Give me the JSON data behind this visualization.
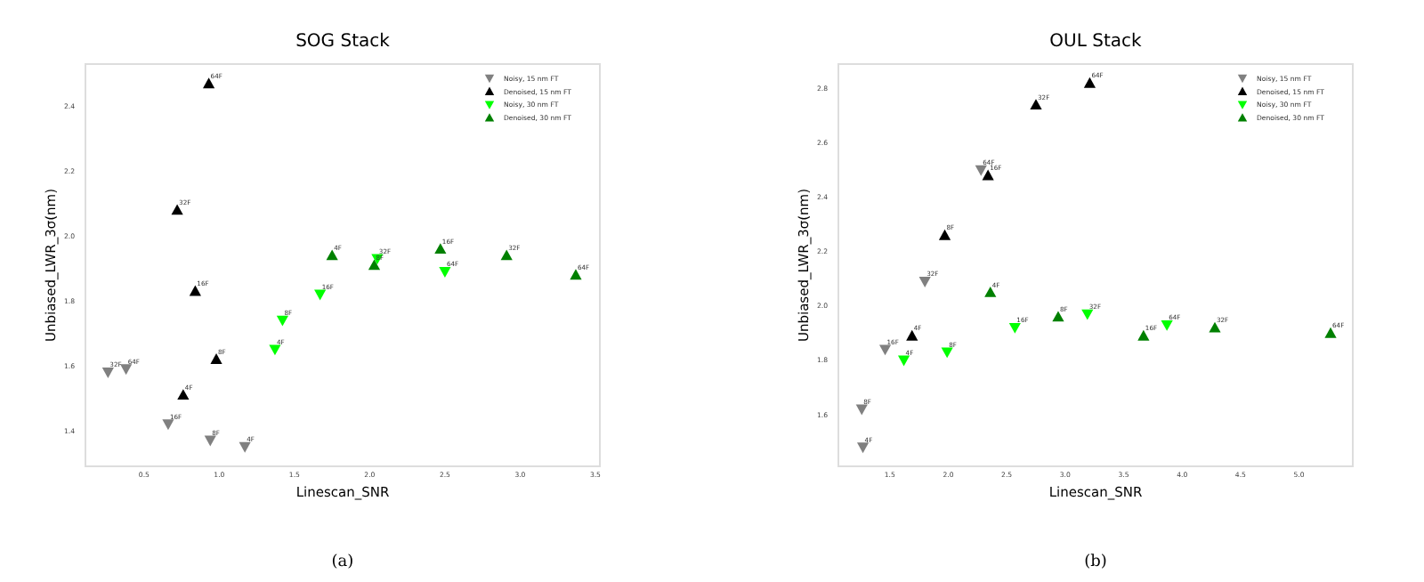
{
  "chart_data": [
    {
      "type": "scatter",
      "title": "SOG Stack",
      "xlabel": "Linescan_SNR",
      "ylabel": "Unbiased_LWR_3σ(nm)",
      "xlim": [
        0.11,
        3.53
      ],
      "ylim": [
        1.29,
        2.53
      ],
      "xticks": [
        0.5,
        {
          "value": 1,
          "label": "1.0"
        },
        1.5,
        {
          "value": 2,
          "label": "2.0"
        },
        2.5,
        {
          "value": 3,
          "label": "3.0"
        },
        3.5
      ],
      "yticks": [
        1.4,
        1.6,
        1.8,
        {
          "value": 2,
          "label": "2.0"
        },
        2.2,
        2.4
      ],
      "grid": false,
      "legend": "top right",
      "series": [
        {
          "name": "Noisy, 15 nm FT",
          "color": "#808080",
          "marker": "triangle_down",
          "x": [
            0.26,
            0.38,
            0.66,
            0.94,
            1.17
          ],
          "values": [
            1.58,
            1.59,
            1.42,
            1.37,
            1.35
          ]
        },
        {
          "name": "Denoised, 15 nm FT",
          "color": "#000000",
          "marker": "triangle",
          "x": [
            0.93,
            0.72,
            0.84,
            0.98,
            0.76
          ],
          "values": [
            2.47,
            2.08,
            1.83,
            1.62,
            1.51
          ]
        },
        {
          "name": "Noisy, 30 nm FT",
          "color": "#00ff00",
          "marker": "triangle_down",
          "x": [
            1.37,
            1.42,
            1.67,
            2.05,
            2.5
          ],
          "values": [
            1.65,
            1.74,
            1.82,
            1.93,
            1.89
          ]
        },
        {
          "name": "Denoised, 30 nm FT",
          "color": "#008000",
          "marker": "triangle",
          "x": [
            1.75,
            2.03,
            2.47,
            2.91,
            3.37
          ],
          "values": [
            1.94,
            1.91,
            1.96,
            1.94,
            1.88
          ]
        }
      ],
      "annotations": [
        {
          "text": "32F",
          "x": 0.26,
          "y": 1.58
        },
        {
          "text": "64F",
          "x": 0.38,
          "y": 1.59
        },
        {
          "text": "16F",
          "x": 0.66,
          "y": 1.42
        },
        {
          "text": "8F",
          "x": 0.94,
          "y": 1.37
        },
        {
          "text": "4F",
          "x": 1.17,
          "y": 1.35
        },
        {
          "text": "64F",
          "x": 0.93,
          "y": 2.47
        },
        {
          "text": "32F",
          "x": 0.72,
          "y": 2.08
        },
        {
          "text": "16F",
          "x": 0.84,
          "y": 1.83
        },
        {
          "text": "8F",
          "x": 0.98,
          "y": 1.62
        },
        {
          "text": "4F",
          "x": 0.76,
          "y": 1.51
        },
        {
          "text": "4F",
          "x": 1.37,
          "y": 1.65
        },
        {
          "text": "8F",
          "x": 1.42,
          "y": 1.74
        },
        {
          "text": "16F",
          "x": 1.67,
          "y": 1.82
        },
        {
          "text": "32F",
          "x": 2.05,
          "y": 1.93
        },
        {
          "text": "64F",
          "x": 2.5,
          "y": 1.89
        },
        {
          "text": "4F",
          "x": 1.75,
          "y": 1.94
        },
        {
          "text": "8F",
          "x": 2.03,
          "y": 1.91
        },
        {
          "text": "16F",
          "x": 2.47,
          "y": 1.96
        },
        {
          "text": "32F",
          "x": 2.91,
          "y": 1.94
        },
        {
          "text": "64F",
          "x": 3.37,
          "y": 1.88
        },
        "(a)"
      ]
    },
    {
      "type": "scatter",
      "title": "OUL Stack",
      "xlabel": "Linescan_SNR",
      "ylabel": "Unbiased_LWR_3σ(nm)",
      "xlim": [
        1.06,
        5.46
      ],
      "ylim": [
        1.41,
        2.89
      ],
      "xticks": [
        1.5,
        {
          "value": 2,
          "label": "2.0"
        },
        2.5,
        {
          "value": 3,
          "label": "3.0"
        },
        3.5,
        {
          "value": 4,
          "label": "4.0"
        },
        4.5,
        {
          "value": 5,
          "label": "5.0"
        }
      ],
      "yticks": [
        1.6,
        1.8,
        {
          "value": 2,
          "label": "2.0"
        },
        2.2,
        2.4,
        2.6,
        2.8
      ],
      "grid": false,
      "legend": "top right",
      "series": [
        {
          "name": "Noisy, 15 nm FT",
          "color": "#808080",
          "marker": "triangle_down",
          "x": [
            1.27,
            1.26,
            1.46,
            1.8,
            2.28
          ],
          "values": [
            1.48,
            1.62,
            1.84,
            2.09,
            2.5
          ]
        },
        {
          "name": "Denoised, 15 nm FT",
          "color": "#000000",
          "marker": "triangle",
          "x": [
            1.69,
            1.97,
            2.34,
            2.75,
            3.21
          ],
          "values": [
            1.89,
            2.26,
            2.48,
            2.74,
            2.82
          ]
        },
        {
          "name": "Noisy, 30 nm FT",
          "color": "#00ff00",
          "marker": "triangle_down",
          "x": [
            1.62,
            1.99,
            2.57,
            3.19,
            3.87
          ],
          "values": [
            1.8,
            1.83,
            1.92,
            1.97,
            1.93
          ]
        },
        {
          "name": "Denoised, 30 nm FT",
          "color": "#008000",
          "marker": "triangle",
          "x": [
            2.36,
            2.94,
            3.67,
            4.28,
            5.27
          ],
          "values": [
            2.05,
            1.96,
            1.89,
            1.92,
            1.9
          ]
        }
      ],
      "annotations": [
        {
          "text": "4F",
          "x": 1.27,
          "y": 1.48
        },
        {
          "text": "8F",
          "x": 1.26,
          "y": 1.62
        },
        {
          "text": "16F",
          "x": 1.46,
          "y": 1.84
        },
        {
          "text": "32F",
          "x": 1.8,
          "y": 2.09
        },
        {
          "text": "64F",
          "x": 2.28,
          "y": 2.5
        },
        {
          "text": "4F",
          "x": 1.69,
          "y": 1.89
        },
        {
          "text": "8F",
          "x": 1.97,
          "y": 2.26
        },
        {
          "text": "16F",
          "x": 2.34,
          "y": 2.48
        },
        {
          "text": "32F",
          "x": 2.75,
          "y": 2.74
        },
        {
          "text": "64F",
          "x": 3.21,
          "y": 2.82
        },
        {
          "text": "4F",
          "x": 1.62,
          "y": 1.8
        },
        {
          "text": "8F",
          "x": 1.99,
          "y": 1.83
        },
        {
          "text": "16F",
          "x": 2.57,
          "y": 1.92
        },
        {
          "text": "32F",
          "x": 3.19,
          "y": 1.97
        },
        {
          "text": "64F",
          "x": 3.87,
          "y": 1.93
        },
        {
          "text": "4F",
          "x": 2.36,
          "y": 2.05
        },
        {
          "text": "8F",
          "x": 2.94,
          "y": 1.96
        },
        {
          "text": "16F",
          "x": 3.67,
          "y": 1.89
        },
        {
          "text": "32F",
          "x": 4.28,
          "y": 1.92
        },
        {
          "text": "64F",
          "x": 5.27,
          "y": 1.9
        },
        "(b)"
      ]
    }
  ]
}
